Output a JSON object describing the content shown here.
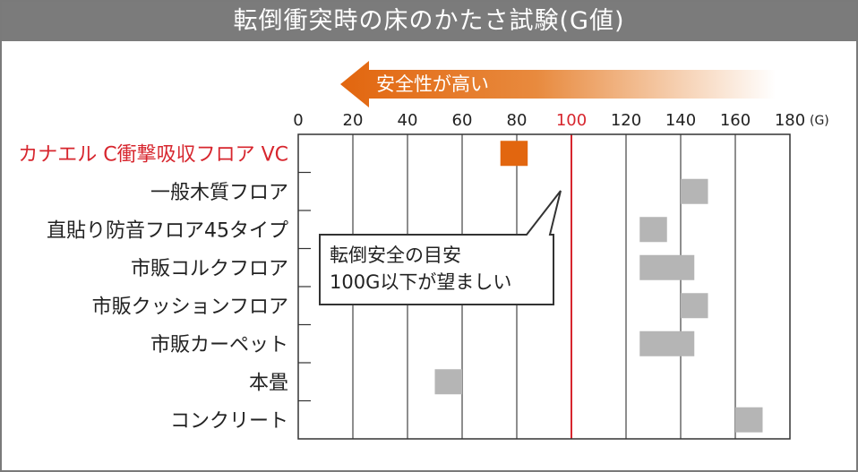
{
  "title": "転倒衝突時の床のかたさ試験(G値)",
  "arrow_label": "安全性が高い",
  "callout": {
    "line1": "転倒安全の目安",
    "line2": "100G以下が望ましい"
  },
  "colors": {
    "highlight_bar": "#e2660f",
    "bar": "#b5b5b5",
    "threshold_line": "#d7262e",
    "title_bg": "#7b7b7b"
  },
  "chart_data": {
    "type": "bar",
    "orientation": "horizontal",
    "title": "転倒衝突時の床のかたさ試験(G値)",
    "x_unit": "(G)",
    "xlim": [
      0,
      180
    ],
    "xticks": [
      0,
      20,
      40,
      60,
      80,
      100,
      120,
      140,
      160,
      180
    ],
    "threshold": 100,
    "categories": [
      "カナエル C衝撃吸収フロア VC",
      "一般木質フロア",
      "直貼り防音フロア45タイプ",
      "市販コルクフロア",
      "市販クッションフロア",
      "市販カーペット",
      "本畳",
      "コンクリート"
    ],
    "ranges": [
      [
        74,
        84
      ],
      [
        140,
        150
      ],
      [
        125,
        135
      ],
      [
        125,
        145
      ],
      [
        140,
        150
      ],
      [
        125,
        145
      ],
      [
        50,
        60
      ],
      [
        160,
        170
      ]
    ],
    "highlight_index": 0,
    "grid": true
  }
}
